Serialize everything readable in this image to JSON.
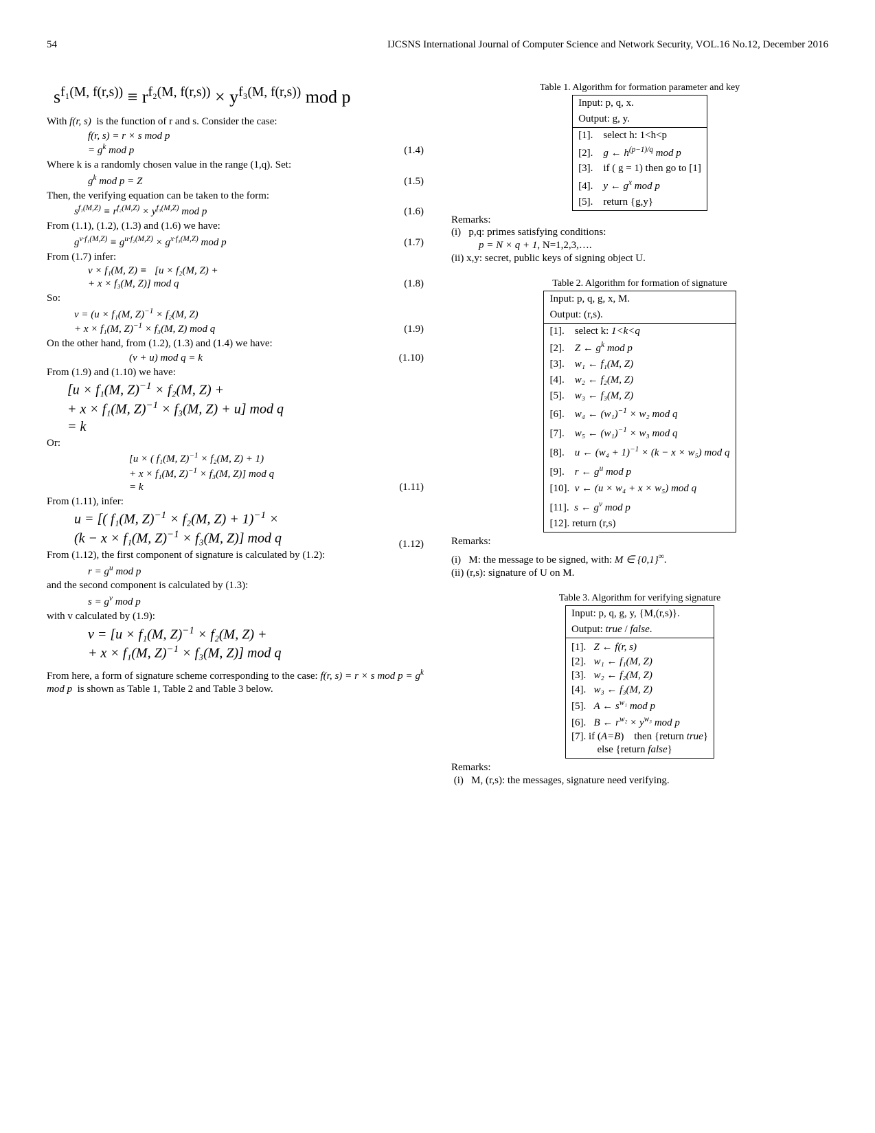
{
  "header": {
    "page_number": "54",
    "journal_line": "IJCSNS International Journal of Computer Science and Network Security, VOL.16 No.12, December 2016"
  },
  "left": {
    "eq_top_big": "s<sup>f₁(M, f(r,s))</sup> ≡ r<sup>f₂(M, f(r,s))</sup> × y<sup>f₃(M, f(r,s))</sup> mod p",
    "with_line": "With <span class='it'>f(r, s)</span>&nbsp; is the function of r and s. Consider the case:",
    "eq14a": "f(r, s) = r × s mod p",
    "eq14b": "= g<sup>k</sup> mod p",
    "eq14_num": "(1.4)",
    "where_k": "Where k is a randomly chosen value in the range (1,q). Set:",
    "eq15": "g<sup>k</sup> mod p = Z",
    "eq15_num": "(1.5)",
    "then_verify": "Then, the verifying equation can be taken to the form:",
    "eq16": "s<sup>f₁(M,Z)</sup> ≡ r<sup>f₂(M,Z)</sup> × y<sup>f₃(M,Z)</sup> mod p",
    "eq16_num": "(1.6)",
    "from1": "From (1.1), (1.2), (1.3) and (1.6) we have:",
    "eq17": "g<sup>v·f₁(M,Z)</sup> ≡ g<sup>u·f₂(M,Z)</sup> × g<sup>x·f₃(M,Z)</sup> mod p",
    "eq17_num": "(1.7)",
    "from17": "From (1.7) infer:",
    "eq18a": "v × f₁(M, Z) ≡&nbsp;&nbsp; [u × f₂(M, Z) +",
    "eq18b": "+ x × f₃(M, Z)] mod q",
    "eq18_num": "(1.8)",
    "so": "So:",
    "eq19a": "v = (u × f₁(M, Z)<sup>−1</sup> × f₂(M, Z)",
    "eq19b": "+ x × f₁(M, Z)<sup>−1</sup> × f₃(M, Z) mod q",
    "eq19_num": "(1.9)",
    "otoh": "On the other hand, from (1.2), (1.3) and (1.4) we have:",
    "eq110": "(v + u) mod q = k",
    "eq110_num": "(1.10)",
    "from19110": "From (1.9) and (1.10) we have:",
    "eqA1": "[u × f₁(M, Z)<sup>−1</sup> × f₂(M, Z) +",
    "eqA2": "+ x × f₁(M, Z)<sup>−1</sup> × f₃(M, Z) + u] mod q",
    "eqA3": "= k",
    "or": "Or:",
    "eqB1": "[u × ( f₁(M, Z)<sup>−1</sup> × f₂(M, Z) + 1)",
    "eqB2": "+ x × f₁(M, Z)<sup>−1</sup> × f₃(M, Z)] mod q",
    "eqB3": "= k",
    "eq111_num": "(1.11)",
    "from111": "From (1.11), infer:",
    "eq112a": "u = [( f₁(M, Z)<sup>−1</sup> × f₂(M, Z) + 1)<sup>−1</sup> ×",
    "eq112b": "(k − x × f₁(M, Z)<sup>−1</sup> × f₃(M, Z)] mod q",
    "eq112_num": "(1.12)",
    "from112": "From (1.12), the first component of signature is calculated by (1.2):",
    "eq_r": "r = g<sup>u</sup> mod p",
    "second_comp": "and the second component is calculated by (1.3):",
    "eq_s": "s = g<sup>v</sup> mod p",
    "with_v": "with v calculated by (1.9):",
    "eq_v1": "v = [u × f₁(M, Z)<sup>−1</sup> × f₂(M, Z) +",
    "eq_v2": "+ x × f₁(M, Z)<sup>−1</sup> × f₃(M, Z)] mod q",
    "from_here": "From here, a form of signature scheme corresponding to the case: <span class='it'>f(r, s) = r × s mod p = g<sup>k</sup> mod p</span>&nbsp; is shown as Table 1, Table 2 and Table 3 below."
  },
  "right": {
    "t1_caption": "Table 1. Algorithm for formation parameter and key",
    "t1_in": "Input: p, q, x.",
    "t1_out": "Output: g, y.",
    "t1_r1": "[1].&nbsp;&nbsp;&nbsp; select h: 1&lt;h&lt;p",
    "t1_r2": "[2].&nbsp;&nbsp;&nbsp; <span class='it'>g ← h<sup>(p−1)/q</sup> mod p</span>",
    "t1_r3": "[3].&nbsp;&nbsp;&nbsp; if ( g = 1) then go to [1]",
    "t1_r4": "[4].&nbsp;&nbsp;&nbsp; <span class='it'>y ← g<sup>x</sup> mod p</span>",
    "t1_r5": "[5].&nbsp;&nbsp;&nbsp; return {g,y}",
    "t1_remarks_label": "Remarks:",
    "t1_rem_i": "(i)&nbsp;&nbsp; p,q: primes satisfying conditions:",
    "t1_rem_i_eq": "<span class='it'>p = N × q + 1</span>, N=1,2,3,….",
    "t1_rem_ii": "(ii) x,y: secret, public keys of signing object U.",
    "t2_caption": "Table 2. Algorithm for formation of signature",
    "t2_in": "Input: p, q, g, x, M.",
    "t2_out": "Output: (r,s).",
    "t2_r1": "[1].&nbsp;&nbsp;&nbsp; select k: <span class='it'>1&lt;k&lt;q</span>",
    "t2_r2": "[2].&nbsp;&nbsp;&nbsp; <span class='it'>Z ← g<sup>k</sup> mod p</span>",
    "t2_r3": "[3].&nbsp;&nbsp;&nbsp; <span class='it'>w₁ ← f₁(M, Z)</span>",
    "t2_r4": "[4].&nbsp;&nbsp;&nbsp; <span class='it'>w₂ ← f₂(M, Z)</span>",
    "t2_r5": "[5].&nbsp;&nbsp;&nbsp; <span class='it'>w₃ ← f₃(M, Z)</span>",
    "t2_r6": "[6].&nbsp;&nbsp;&nbsp; <span class='it'>w₄ ← (w₁)<sup>−1</sup> × w₂ mod q</span>",
    "t2_r7": "[7].&nbsp;&nbsp;&nbsp; <span class='it'>w₅ ← (w₁)<sup>−1</sup> × w₃ mod q</span>",
    "t2_r8": "[8].&nbsp;&nbsp;&nbsp; <span class='it'>u ← (w₄ + 1)<sup>−1</sup> × (k − x × w₅) mod q</span>",
    "t2_r9": "[9].&nbsp;&nbsp;&nbsp; <span class='it'>r ← g<sup>u</sup> mod p</span>",
    "t2_r10": "[10].&nbsp; <span class='it'>v ← (u × w₄ + x × w₅) mod q</span>",
    "t2_r11": "[11].&nbsp; <span class='it'>s ← g<sup>v</sup> mod p</span>",
    "t2_r12": "[12]. return (r,s)",
    "t2_remarks_label": "Remarks:",
    "t2_rem_i": "(i)&nbsp;&nbsp; M: the message to be signed, with: <span class='it'>M ∈ {0,1}<sup>∞</sup></span>.",
    "t2_rem_ii": "(ii) (r,s): signature of U on M.",
    "t3_caption": "Table 3. Algorithm for verifying signature",
    "t3_in": "Input: p, q, g, y, {M,(r,s)}.",
    "t3_out": "Output: <span class='it'>true</span> / <span class='it'>false</span>.",
    "t3_r1": "[1].&nbsp;&nbsp; <span class='it'>Z ← f(r, s)</span>",
    "t3_r2": "[2].&nbsp;&nbsp; <span class='it'>w₁ ← f₁(M, Z)</span>",
    "t3_r3": "[3].&nbsp;&nbsp; <span class='it'>w₂ ← f₂(M, Z)</span>",
    "t3_r4": "[4].&nbsp;&nbsp; <span class='it'>w₃ ← f₃(M, Z)</span>",
    "t3_r5": "[5].&nbsp;&nbsp; <span class='it'>A ← s<sup>w₁</sup> mod p</span>",
    "t3_r6": "[6].&nbsp;&nbsp; <span class='it'>B ← r<sup>w₂</sup> × y<sup>w₃</sup> mod p</span>",
    "t3_r7": "[7]. if (<span class='it'>A=B</span>) &nbsp;&nbsp; then {return <span class='it'>true</span>}",
    "t3_r8": "&nbsp;&nbsp;&nbsp;&nbsp;&nbsp;&nbsp;&nbsp;&nbsp;&nbsp; else {return <span class='it'>false</span>}",
    "t3_remarks_label": "Remarks:",
    "t3_rem_i": "&nbsp;(i)&nbsp;&nbsp; M, (r,s): the messages, signature need verifying."
  }
}
